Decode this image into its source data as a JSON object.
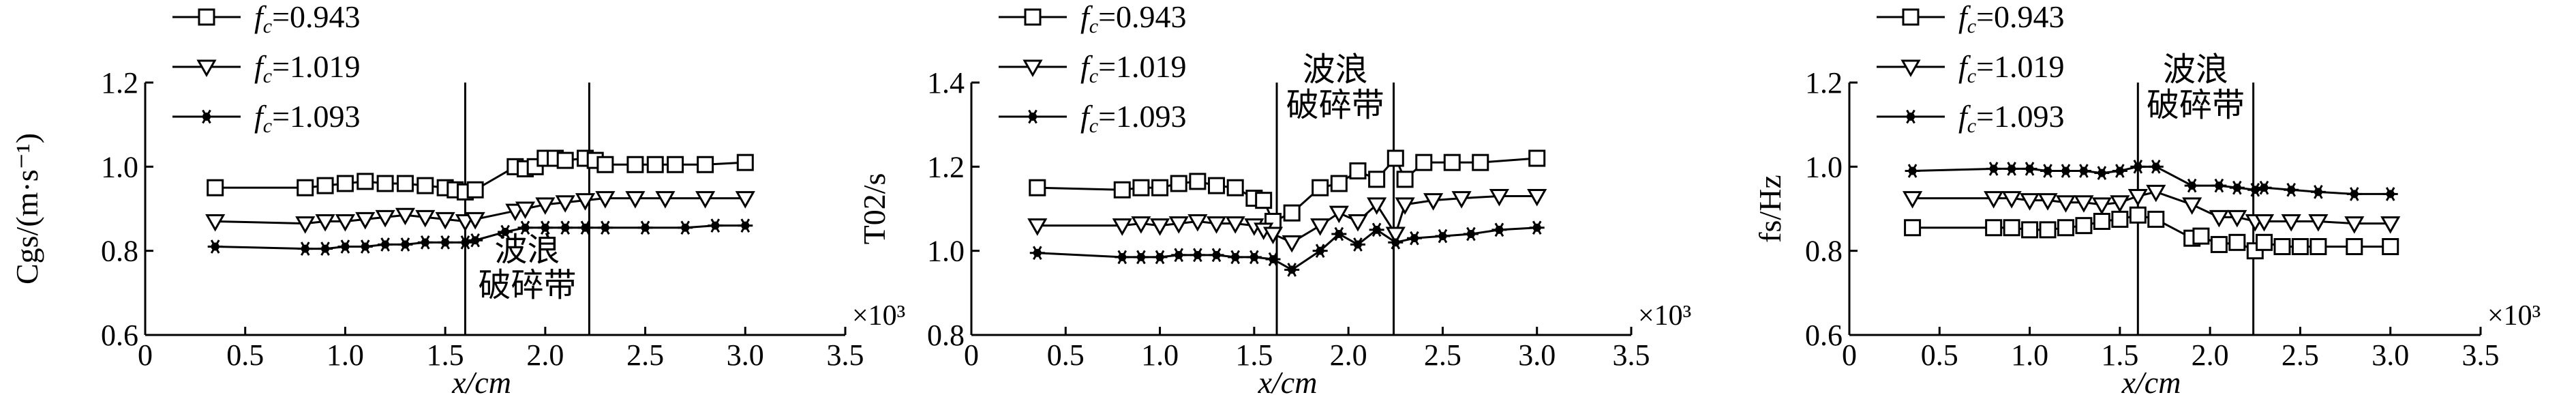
{
  "chart_data": [
    {
      "type": "line",
      "xlabel": "x/cm",
      "ylabel": "Cgs/(m·s⁻¹)",
      "xlim": [
        0,
        3.5
      ],
      "ylim": [
        0.6,
        1.2
      ],
      "x_ticks": [
        "0",
        "0.5",
        "1.0",
        "1.5",
        "2.0",
        "2.5",
        "3.0",
        "3.5"
      ],
      "y_ticks": [
        "0.6",
        "0.8",
        "1.0",
        "1.2"
      ],
      "x_multiplier": "×10³",
      "breaking_zone": [
        1.6,
        2.22
      ],
      "breaking_label": [
        "波浪",
        "破碎带"
      ],
      "legend_position": "top-left",
      "grid": false,
      "series": [
        {
          "name": "fc=0.943",
          "marker": "square",
          "x": [
            0.35,
            0.8,
            0.9,
            1.0,
            1.1,
            1.2,
            1.3,
            1.4,
            1.5,
            1.55,
            1.6,
            1.65,
            1.85,
            1.9,
            1.95,
            2.0,
            2.05,
            2.1,
            2.2,
            2.25,
            2.3,
            2.45,
            2.55,
            2.65,
            2.8,
            3.0
          ],
          "values": [
            0.95,
            0.95,
            0.955,
            0.96,
            0.965,
            0.96,
            0.96,
            0.955,
            0.95,
            0.945,
            0.94,
            0.945,
            1.0,
            0.995,
            1.0,
            1.02,
            1.02,
            1.015,
            1.02,
            1.015,
            1.005,
            1.005,
            1.005,
            1.005,
            1.005,
            1.01
          ]
        },
        {
          "name": "fc=1.019",
          "marker": "triangle-down",
          "x": [
            0.35,
            0.8,
            0.9,
            1.0,
            1.1,
            1.2,
            1.3,
            1.4,
            1.5,
            1.6,
            1.65,
            1.85,
            1.9,
            2.0,
            2.1,
            2.2,
            2.3,
            2.45,
            2.6,
            2.8,
            3.0
          ],
          "values": [
            0.87,
            0.865,
            0.87,
            0.87,
            0.875,
            0.88,
            0.885,
            0.88,
            0.875,
            0.87,
            0.875,
            0.895,
            0.9,
            0.91,
            0.915,
            0.92,
            0.925,
            0.925,
            0.925,
            0.925,
            0.925
          ]
        },
        {
          "name": "fc=1.093",
          "marker": "asterisk",
          "x": [
            0.35,
            0.8,
            0.9,
            1.0,
            1.1,
            1.2,
            1.3,
            1.4,
            1.5,
            1.6,
            1.65,
            1.8,
            1.9,
            2.0,
            2.1,
            2.2,
            2.3,
            2.5,
            2.7,
            2.85,
            3.0
          ],
          "values": [
            0.81,
            0.805,
            0.805,
            0.81,
            0.81,
            0.815,
            0.815,
            0.82,
            0.82,
            0.82,
            0.825,
            0.845,
            0.855,
            0.855,
            0.855,
            0.855,
            0.855,
            0.855,
            0.855,
            0.86,
            0.86
          ]
        }
      ]
    },
    {
      "type": "line",
      "xlabel": "x/cm",
      "ylabel": "T02/s",
      "xlim": [
        0,
        3.5
      ],
      "ylim": [
        0.8,
        1.4
      ],
      "x_ticks": [
        "0",
        "0.5",
        "1.0",
        "1.5",
        "2.0",
        "2.5",
        "3.0",
        "3.5"
      ],
      "y_ticks": [
        "0.8",
        "1.0",
        "1.2",
        "1.4"
      ],
      "x_multiplier": "×10³",
      "breaking_zone": [
        1.62,
        2.24
      ],
      "breaking_label": [
        "波浪",
        "破碎带"
      ],
      "legend_position": "top-left",
      "grid": false,
      "series": [
        {
          "name": "fc=0.943",
          "marker": "square",
          "x": [
            0.35,
            0.8,
            0.9,
            1.0,
            1.1,
            1.2,
            1.3,
            1.4,
            1.5,
            1.55,
            1.6,
            1.7,
            1.85,
            1.95,
            2.05,
            2.15,
            2.25,
            2.3,
            2.4,
            2.55,
            2.7,
            3.0
          ],
          "values": [
            1.15,
            1.145,
            1.15,
            1.15,
            1.16,
            1.165,
            1.155,
            1.15,
            1.125,
            1.12,
            1.07,
            1.09,
            1.15,
            1.16,
            1.19,
            1.17,
            1.22,
            1.17,
            1.21,
            1.21,
            1.21,
            1.22
          ]
        },
        {
          "name": "fc=1.019",
          "marker": "triangle-down",
          "x": [
            0.35,
            0.8,
            0.9,
            1.0,
            1.1,
            1.2,
            1.3,
            1.4,
            1.5,
            1.55,
            1.6,
            1.7,
            1.85,
            1.95,
            2.05,
            2.15,
            2.25,
            2.3,
            2.45,
            2.6,
            2.8,
            3.0
          ],
          "values": [
            1.06,
            1.06,
            1.065,
            1.06,
            1.065,
            1.07,
            1.065,
            1.065,
            1.06,
            1.05,
            1.04,
            1.02,
            1.06,
            1.09,
            1.07,
            1.11,
            1.04,
            1.11,
            1.12,
            1.125,
            1.13,
            1.13
          ]
        },
        {
          "name": "fc=1.093",
          "marker": "asterisk",
          "x": [
            0.35,
            0.8,
            0.9,
            1.0,
            1.1,
            1.2,
            1.3,
            1.4,
            1.5,
            1.6,
            1.7,
            1.85,
            1.95,
            2.05,
            2.15,
            2.25,
            2.35,
            2.5,
            2.65,
            2.8,
            3.0
          ],
          "values": [
            0.995,
            0.985,
            0.985,
            0.985,
            0.99,
            0.99,
            0.99,
            0.985,
            0.985,
            0.98,
            0.955,
            1.0,
            1.04,
            1.015,
            1.05,
            1.02,
            1.03,
            1.035,
            1.04,
            1.05,
            1.055
          ]
        }
      ]
    },
    {
      "type": "line",
      "xlabel": "x/cm",
      "ylabel": "fs/Hz",
      "xlim": [
        0,
        3.5
      ],
      "ylim": [
        0.6,
        1.2
      ],
      "x_ticks": [
        "0",
        "0.5",
        "1.0",
        "1.5",
        "2.0",
        "2.5",
        "3.0",
        "3.5"
      ],
      "y_ticks": [
        "0.6",
        "0.8",
        "1.0",
        "1.2"
      ],
      "x_multiplier": "×10³",
      "breaking_zone": [
        1.6,
        2.24
      ],
      "breaking_label": [
        "波浪",
        "破碎带"
      ],
      "legend_position": "top-left",
      "grid": false,
      "series": [
        {
          "name": "fc=0.943",
          "marker": "square",
          "x": [
            0.35,
            0.8,
            0.9,
            1.0,
            1.1,
            1.2,
            1.3,
            1.4,
            1.5,
            1.6,
            1.7,
            1.9,
            1.95,
            2.05,
            2.15,
            2.25,
            2.3,
            2.4,
            2.5,
            2.6,
            2.8,
            3.0
          ],
          "values": [
            0.855,
            0.855,
            0.855,
            0.85,
            0.85,
            0.855,
            0.86,
            0.87,
            0.875,
            0.885,
            0.875,
            0.83,
            0.835,
            0.815,
            0.82,
            0.8,
            0.82,
            0.81,
            0.81,
            0.81,
            0.81,
            0.81
          ]
        },
        {
          "name": "fc=1.019",
          "marker": "triangle-down",
          "x": [
            0.35,
            0.8,
            0.9,
            1.0,
            1.1,
            1.2,
            1.3,
            1.4,
            1.5,
            1.6,
            1.7,
            1.9,
            2.05,
            2.15,
            2.25,
            2.3,
            2.45,
            2.6,
            2.8,
            3.0
          ],
          "values": [
            0.925,
            0.925,
            0.925,
            0.92,
            0.92,
            0.915,
            0.915,
            0.91,
            0.915,
            0.93,
            0.94,
            0.91,
            0.88,
            0.88,
            0.87,
            0.87,
            0.87,
            0.87,
            0.865,
            0.865
          ]
        },
        {
          "name": "fc=1.093",
          "marker": "asterisk",
          "x": [
            0.35,
            0.8,
            0.9,
            1.0,
            1.1,
            1.2,
            1.3,
            1.4,
            1.5,
            1.6,
            1.7,
            1.9,
            2.05,
            2.15,
            2.25,
            2.3,
            2.45,
            2.6,
            2.8,
            3.0
          ],
          "values": [
            0.99,
            0.995,
            0.995,
            0.995,
            0.99,
            0.99,
            0.99,
            0.985,
            0.99,
            1.0,
            1.0,
            0.955,
            0.955,
            0.95,
            0.945,
            0.95,
            0.945,
            0.94,
            0.935,
            0.935
          ]
        }
      ]
    }
  ]
}
